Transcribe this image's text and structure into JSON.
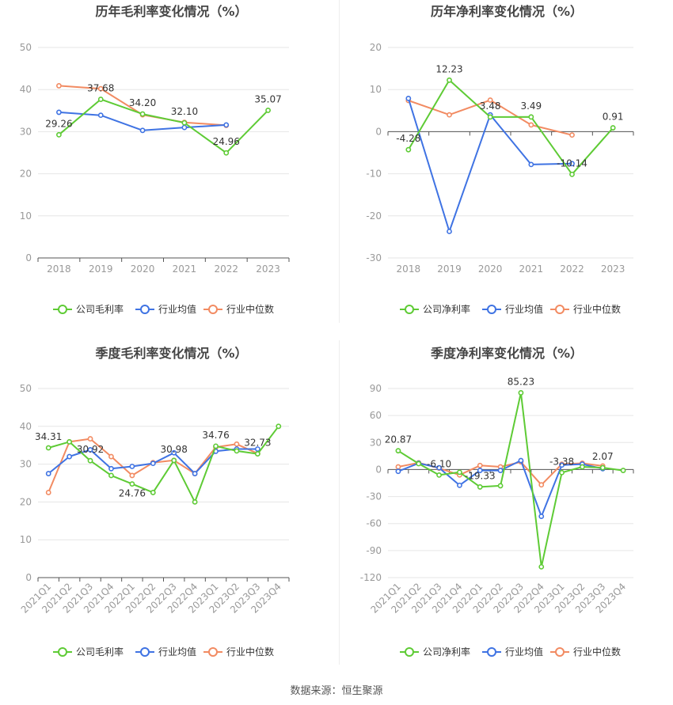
{
  "source_text": "数据来源：恒生聚源",
  "colors": {
    "company": "#5ecb35",
    "avg": "#3f73e3",
    "median": "#f28b62",
    "grid": "#e6e6e6",
    "axis": "#555555",
    "tick": "#999999",
    "title": "#444444"
  },
  "chart_data": [
    {
      "type": "line",
      "title": "历年毛利率变化情况（%）",
      "categories": [
        "2018",
        "2019",
        "2020",
        "2021",
        "2022",
        "2023"
      ],
      "ylim": [
        0,
        50
      ],
      "yticks": [
        0,
        10,
        20,
        30,
        40,
        50
      ],
      "grid": true,
      "legend": "bottom",
      "xlabels_rotated": false,
      "series": [
        {
          "name": "公司毛利率",
          "key": "company",
          "values": [
            29.26,
            37.68,
            34.2,
            32.1,
            24.96,
            35.07
          ]
        },
        {
          "name": "行业均值",
          "key": "avg",
          "values": [
            34.6,
            33.9,
            30.3,
            31.0,
            31.6,
            null
          ]
        },
        {
          "name": "行业中位数",
          "key": "median",
          "values": [
            40.9,
            40.2,
            34.0,
            32.2,
            31.5,
            null
          ]
        }
      ],
      "data_labels": [
        {
          "index": 0,
          "text": "29.26",
          "pos": "above"
        },
        {
          "index": 1,
          "text": "37.68",
          "pos": "above"
        },
        {
          "index": 2,
          "text": "34.20",
          "pos": "above"
        },
        {
          "index": 3,
          "text": "32.10",
          "pos": "above"
        },
        {
          "index": 4,
          "text": "24.96",
          "pos": "above"
        },
        {
          "index": 5,
          "text": "35.07",
          "pos": "above"
        }
      ]
    },
    {
      "type": "line",
      "title": "历年净利率变化情况（%）",
      "categories": [
        "2018",
        "2019",
        "2020",
        "2021",
        "2022",
        "2023"
      ],
      "ylim": [
        -30,
        20
      ],
      "yticks": [
        -30,
        -20,
        -10,
        0,
        10,
        20
      ],
      "grid": true,
      "legend": "bottom",
      "xlabels_rotated": false,
      "series": [
        {
          "name": "公司净利率",
          "key": "company",
          "values": [
            -4.28,
            12.23,
            3.48,
            3.49,
            -10.14,
            0.91
          ]
        },
        {
          "name": "行业均值",
          "key": "avg",
          "values": [
            7.9,
            -23.7,
            4.0,
            -7.8,
            -7.6,
            null
          ]
        },
        {
          "name": "行业中位数",
          "key": "median",
          "values": [
            7.4,
            4.0,
            7.5,
            1.6,
            -0.8,
            null
          ]
        }
      ],
      "data_labels": [
        {
          "index": 0,
          "text": "-4.28",
          "pos": "above"
        },
        {
          "index": 1,
          "text": "12.23",
          "pos": "above"
        },
        {
          "index": 2,
          "text": "3.48",
          "pos": "above"
        },
        {
          "index": 3,
          "text": "3.49",
          "pos": "above"
        },
        {
          "index": 4,
          "text": "-10.14",
          "pos": "above"
        },
        {
          "index": 5,
          "text": "0.91",
          "pos": "above"
        }
      ]
    },
    {
      "type": "line",
      "title": "季度毛利率变化情况（%）",
      "categories": [
        "2021Q1",
        "2021Q2",
        "2021Q3",
        "2021Q4",
        "2022Q1",
        "2022Q2",
        "2022Q3",
        "2022Q4",
        "2023Q1",
        "2023Q2",
        "2023Q3",
        "2023Q4"
      ],
      "ylim": [
        0,
        50
      ],
      "yticks": [
        0,
        10,
        20,
        30,
        40,
        50
      ],
      "grid": true,
      "legend": "bottom",
      "xlabels_rotated": true,
      "series": [
        {
          "name": "公司毛利率",
          "key": "company",
          "values": [
            34.31,
            35.9,
            30.92,
            27.0,
            24.76,
            22.5,
            30.98,
            20.0,
            34.76,
            33.5,
            32.73,
            40.0
          ]
        },
        {
          "name": "行业均值",
          "key": "avg",
          "values": [
            27.5,
            32.0,
            33.8,
            28.8,
            29.4,
            30.2,
            33.0,
            27.5,
            33.4,
            34.0,
            34.0,
            null
          ]
        },
        {
          "name": "行业中位数",
          "key": "median",
          "values": [
            22.5,
            35.9,
            36.7,
            32.0,
            27.0,
            30.4,
            31.0,
            27.5,
            34.5,
            35.3,
            32.8,
            null
          ]
        }
      ],
      "data_labels": [
        {
          "index": 0,
          "text": "34.31",
          "pos": "above"
        },
        {
          "index": 2,
          "text": "30.92",
          "pos": "above"
        },
        {
          "index": 4,
          "text": "24.76",
          "pos": "below"
        },
        {
          "index": 6,
          "text": "30.98",
          "pos": "above"
        },
        {
          "index": 8,
          "text": "34.76",
          "pos": "above"
        },
        {
          "index": 10,
          "text": "32.73",
          "pos": "above"
        }
      ]
    },
    {
      "type": "line",
      "title": "季度净利率变化情况（%）",
      "categories": [
        "2021Q1",
        "2021Q2",
        "2021Q3",
        "2021Q4",
        "2022Q1",
        "2022Q2",
        "2022Q3",
        "2022Q4",
        "2023Q1",
        "2023Q2",
        "2023Q3",
        "2023Q4"
      ],
      "ylim": [
        -120,
        90
      ],
      "yticks": [
        -120,
        -90,
        -60,
        -30,
        0,
        30,
        60,
        90
      ],
      "grid": true,
      "legend": "bottom",
      "xlabels_rotated": true,
      "series": [
        {
          "name": "公司净利率",
          "key": "company",
          "values": [
            20.87,
            6.5,
            -6.1,
            -3.0,
            -19.33,
            -18.0,
            85.23,
            -108.0,
            -3.38,
            3.0,
            2.07,
            -1.0
          ]
        },
        {
          "name": "行业均值",
          "key": "avg",
          "values": [
            -2.0,
            7.0,
            2.0,
            -17.5,
            -1.0,
            -1.0,
            10.0,
            -52.0,
            5.0,
            6.0,
            1.0,
            null
          ]
        },
        {
          "name": "行业中位数",
          "key": "median",
          "values": [
            3.0,
            7.5,
            1.5,
            -6.0,
            4.5,
            3.0,
            8.5,
            -17.0,
            6.0,
            7.0,
            4.0,
            null
          ]
        }
      ],
      "data_labels": [
        {
          "index": 0,
          "text": "20.87",
          "pos": "above"
        },
        {
          "index": 2,
          "text": "-6.10",
          "pos": "above"
        },
        {
          "index": 4,
          "text": "-19.33",
          "pos": "above"
        },
        {
          "index": 6,
          "text": "85.23",
          "pos": "above"
        },
        {
          "index": 8,
          "text": "-3.38",
          "pos": "above"
        },
        {
          "index": 10,
          "text": "2.07",
          "pos": "above"
        }
      ]
    }
  ]
}
